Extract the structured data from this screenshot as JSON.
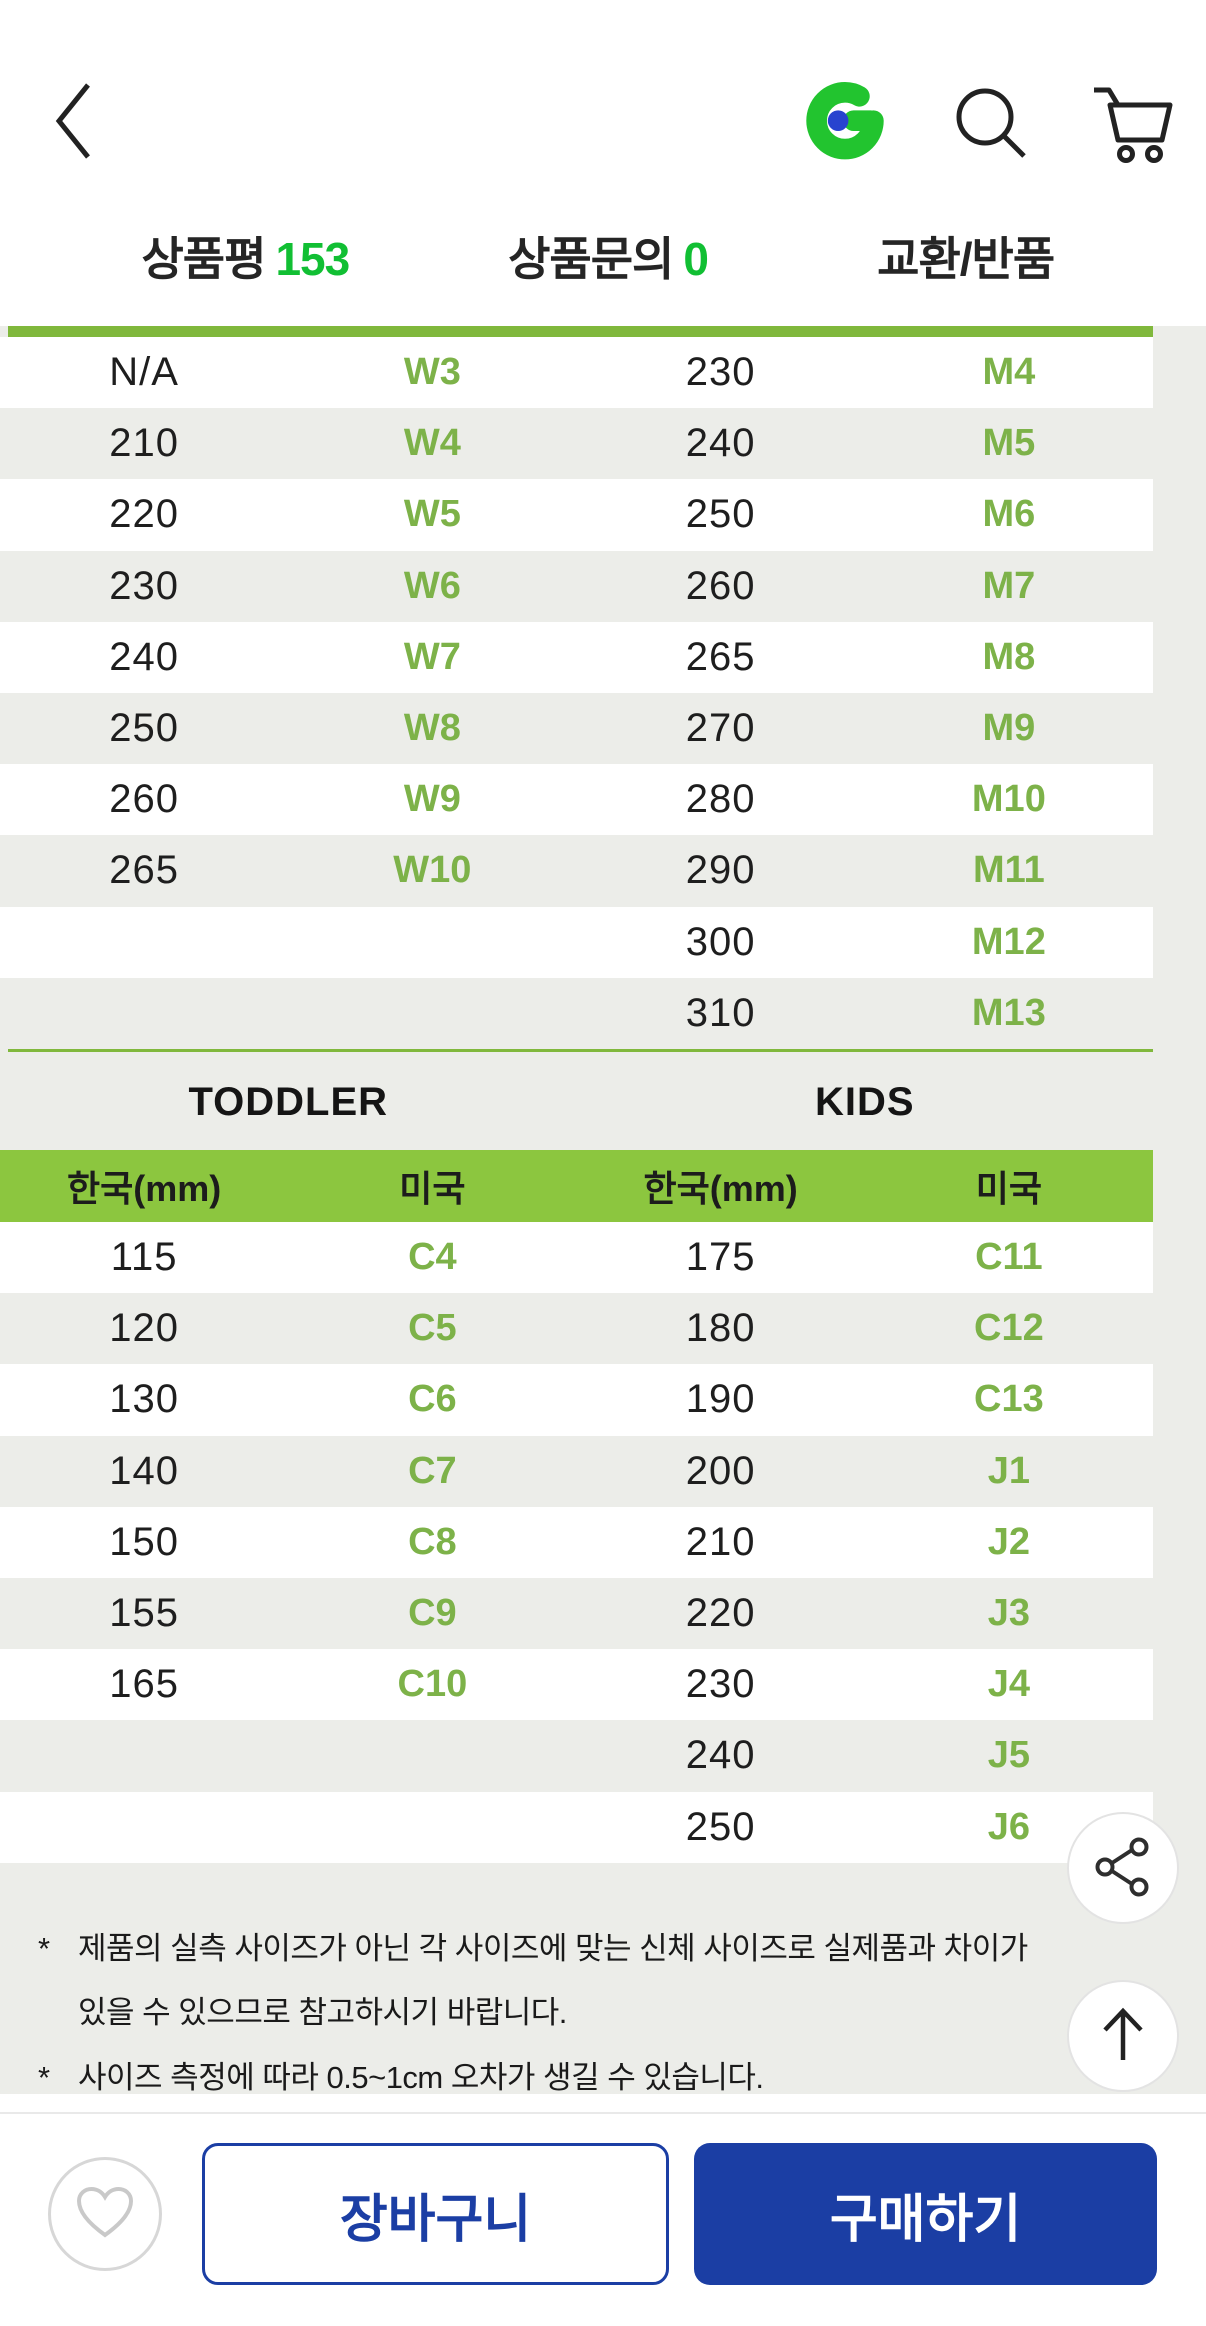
{
  "header": {
    "back_icon": "chevron-left",
    "logo_icon": "gmarket-g",
    "search_icon": "magnifier",
    "cart_icon": "shopping-cart"
  },
  "tabs": [
    {
      "label": "상품평",
      "count": "153"
    },
    {
      "label": "상품문의",
      "count": "0"
    },
    {
      "label": "교환/반품",
      "count": ""
    }
  ],
  "size_chart": {
    "adult_table": {
      "rows": [
        [
          "N/A",
          "W3",
          "230",
          "M4"
        ],
        [
          "210",
          "W4",
          "240",
          "M5"
        ],
        [
          "220",
          "W5",
          "250",
          "M6"
        ],
        [
          "230",
          "W6",
          "260",
          "M7"
        ],
        [
          "240",
          "W7",
          "265",
          "M8"
        ],
        [
          "250",
          "W8",
          "270",
          "M9"
        ],
        [
          "260",
          "W9",
          "280",
          "M10"
        ],
        [
          "265",
          "W10",
          "290",
          "M11"
        ],
        [
          "",
          "",
          "300",
          "M12"
        ],
        [
          "",
          "",
          "310",
          "M13"
        ]
      ]
    },
    "section_titles": [
      "TODDLER",
      "KIDS"
    ],
    "header_columns": [
      "한국(mm)",
      "미국",
      "한국(mm)",
      "미국"
    ],
    "child_table": {
      "rows": [
        [
          "115",
          "C4",
          "175",
          "C11"
        ],
        [
          "120",
          "C5",
          "180",
          "C12"
        ],
        [
          "130",
          "C6",
          "190",
          "C13"
        ],
        [
          "140",
          "C7",
          "200",
          "J1"
        ],
        [
          "150",
          "C8",
          "210",
          "J2"
        ],
        [
          "155",
          "C9",
          "220",
          "J3"
        ],
        [
          "165",
          "C10",
          "230",
          "J4"
        ],
        [
          "",
          "",
          "240",
          "J5"
        ],
        [
          "",
          "",
          "250",
          "J6"
        ]
      ]
    }
  },
  "footnotes": [
    {
      "marker": "*",
      "lines": [
        "제품의 실측 사이즈가 아닌 각 사이즈에 맞는 신체 사이즈로 실제품과 차이가",
        "있을 수 있으므로 참고하시기 바랍니다."
      ]
    },
    {
      "marker": "*",
      "lines": [
        "사이즈 측정에 따라 0.5~1cm 오차가 생길 수 있습니다."
      ]
    }
  ],
  "floating": {
    "share_icon": "share-nodes",
    "scroll_top_icon": "arrow-up"
  },
  "bottom_bar": {
    "wishlist_icon": "heart",
    "cart_button": "장바구니",
    "buy_button": "구매하기"
  },
  "colors": {
    "table_header_green": "#8CC63F",
    "table_line_green": "#80B83C",
    "size_code_green": "#7DB249",
    "tab_count_green": "#11bf33",
    "logo_green": "#22C42F",
    "logo_dot_blue": "#2843CF",
    "button_blue": "#1B3EA4",
    "stripe_gray": "#ECEDE9"
  }
}
